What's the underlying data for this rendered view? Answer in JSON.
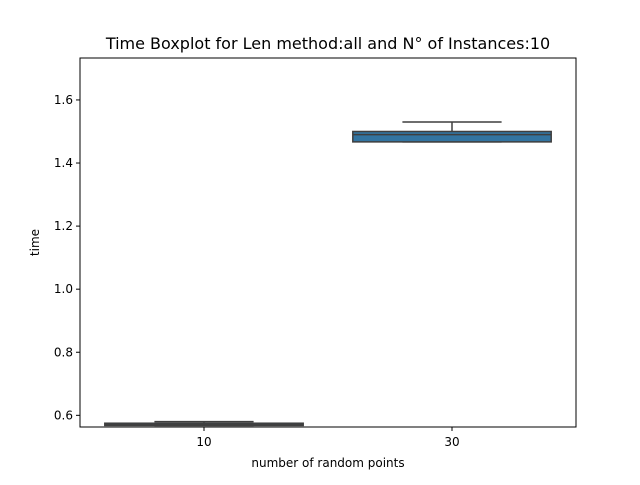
{
  "chart_data": {
    "type": "boxplot",
    "title": "Time Boxplot for Len method:all and N° of Instances:10",
    "xlabel": "number of random points",
    "ylabel": "time",
    "categories": [
      "10",
      "30"
    ],
    "ylim": [
      0.563,
      1.733
    ],
    "y_ticks": [
      0.6,
      0.8,
      1.0,
      1.2,
      1.4,
      1.6
    ],
    "y_tick_labels": [
      "0.6",
      "0.8",
      "1.0",
      "1.2",
      "1.4",
      "1.6"
    ],
    "grid": false,
    "boxes": [
      {
        "category": "10",
        "whisker_low": 0.568,
        "q1": 0.568,
        "median": 0.57,
        "q3": 0.575,
        "whisker_high": 0.58,
        "color": "#3274a1"
      },
      {
        "category": "30",
        "whisker_low": 1.467,
        "q1": 1.467,
        "median": 1.49,
        "q3": 1.5,
        "whisker_high": 1.53,
        "color": "#3274a1"
      }
    ],
    "colors": {
      "box_fill": "#3274a1",
      "line": "#3f3f3f",
      "frame": "#000000"
    }
  }
}
